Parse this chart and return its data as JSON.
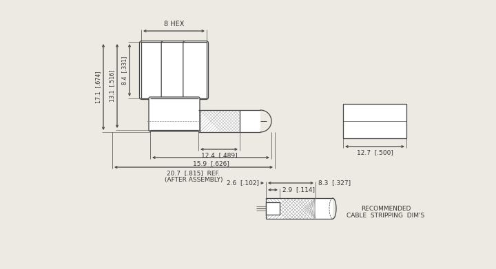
{
  "bg_color": "#ede9e3",
  "line_color": "#444444",
  "text_color": "#333333",
  "dim_labels": {
    "hex_width": "8 HEX",
    "d1": "2.9  [.114]",
    "d2": "8.3  [.327]",
    "d3": "2.6  [.102]",
    "h1": "8.4  [.331]",
    "h2": "13.1  [.516]",
    "h3": "17.1  [.674]",
    "w1": "12.4  [.489]",
    "w2": "15.9  [.626]",
    "w3": "20.7  [.815]  REF.",
    "w3b": "(AFTER ASSEMBLY)",
    "end_view": "12.7  [.500]",
    "rec_text1": "RECOMMENDED",
    "rec_text2": "CABLE  STRIPPING  DIM'S"
  }
}
